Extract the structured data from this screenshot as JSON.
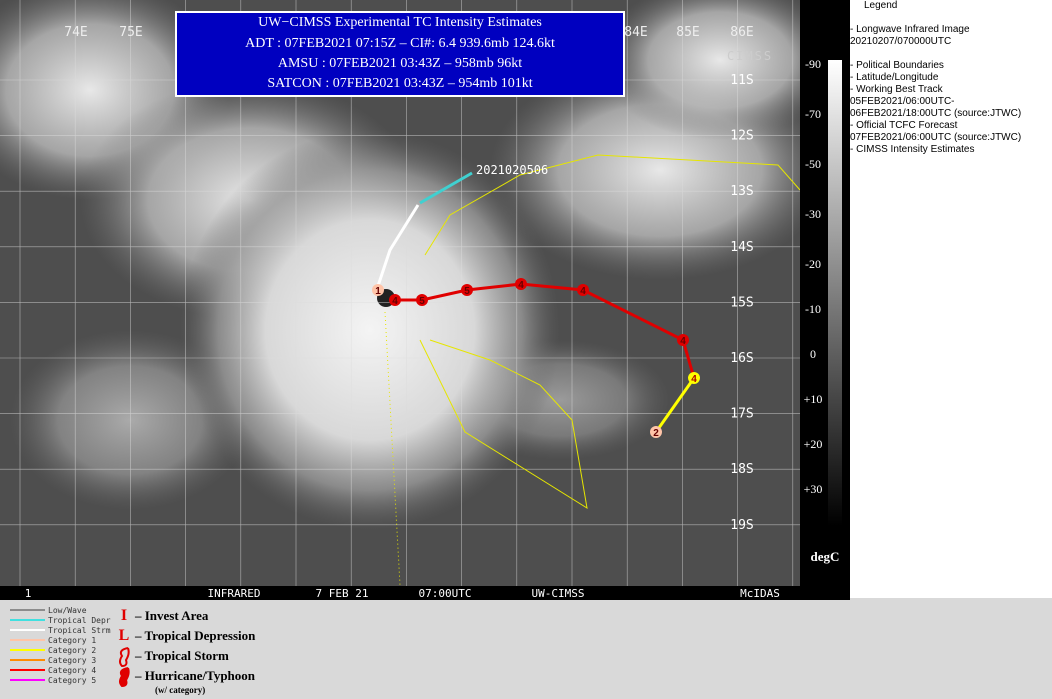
{
  "header": {
    "title": "UW−CIMSS Experimental TC Intensity Estimates",
    "lines": [
      "ADT : 07FEB2021 07:15Z –  CI#: 6.4  939.6mb  124.6kt",
      "AMSU : 07FEB2021 03:43Z –  958mb  96kt",
      "SATCON : 07FEB2021 03:43Z –  954mb  101kt"
    ]
  },
  "map": {
    "lon_labels": [
      "74E",
      "75E",
      "84E",
      "85E",
      "86E"
    ],
    "lat_labels": [
      "11S",
      "12S",
      "13S",
      "14S",
      "15S",
      "16S",
      "17S",
      "18S",
      "19S"
    ],
    "track_label": "2021020506",
    "track_symbols": [
      "1",
      "4",
      "5",
      "5",
      "4",
      "4",
      "4",
      "4",
      "2",
      "1"
    ],
    "logo": "CIMSS"
  },
  "status_bar": [
    "1",
    "INFRARED",
    "7 FEB 21",
    "07:00UTC",
    "UW-CIMSS",
    "McIDAS"
  ],
  "colorbar": {
    "labels": [
      "-90",
      "-70",
      "-50",
      "-30",
      "-20",
      "-10",
      "0",
      "+10",
      "+20",
      "+30"
    ],
    "unit": "degC"
  },
  "legend": {
    "title": "Legend",
    "items": [
      "-  Longwave Infrared Image",
      "20210207/070000UTC",
      "",
      "-  Political Boundaries",
      "-  Latitude/Longitude",
      "-  Working Best Track",
      "05FEB2021/06:00UTC-",
      "06FEB2021/18:00UTC   (source:JTWC)",
      "-  Official TCFC Forecast",
      "07FEB2021/06:00UTC  (source:JTWC)",
      "-  CIMSS Intensity Estimates"
    ]
  },
  "track_key": {
    "entries": [
      {
        "label": "Low/Wave",
        "color": "#8c8c8c"
      },
      {
        "label": "Tropical Depr",
        "color": "#40e0e0"
      },
      {
        "label": "Tropical Strm",
        "color": "#ffffff"
      },
      {
        "label": "Category 1",
        "color": "#ffc4a8"
      },
      {
        "label": "Category 2",
        "color": "#ffff00"
      },
      {
        "label": "Category 3",
        "color": "#ff8c00"
      },
      {
        "label": "Category 4",
        "color": "#ff0000"
      },
      {
        "label": "Category 5",
        "color": "#ff00ff"
      }
    ]
  },
  "symbol_key": {
    "entries": [
      {
        "symbol": "I",
        "label": "– Invest Area"
      },
      {
        "symbol": "L",
        "label": "– Tropical Depression"
      },
      {
        "label": "– Tropical Storm"
      },
      {
        "label": "– Hurricane/Typhoon"
      }
    ],
    "note": "(w/ category)"
  }
}
